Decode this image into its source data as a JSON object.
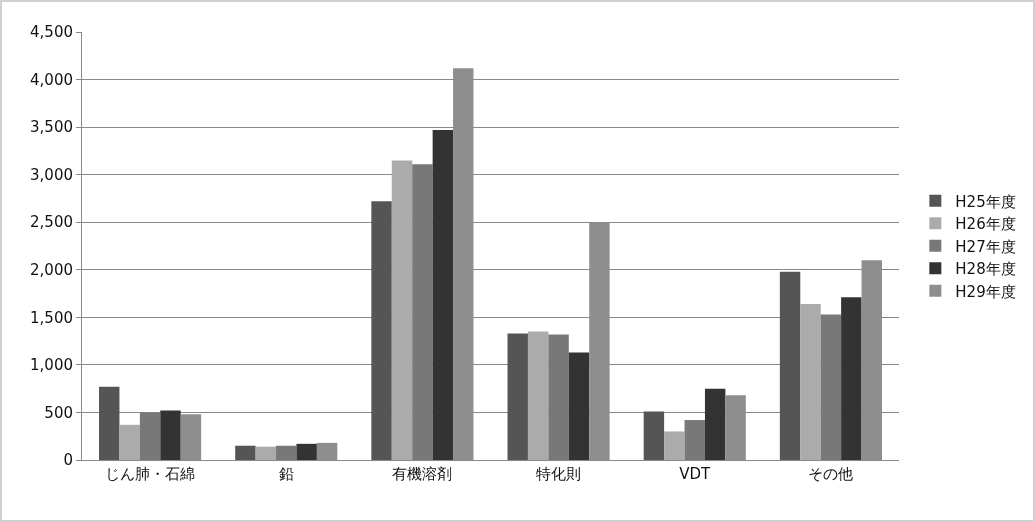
{
  "chart_data": {
    "type": "bar",
    "categories": [
      "じん肺・石綿",
      "鉛",
      "有機溶剤",
      "特化則",
      "VDT",
      "その他"
    ],
    "series": [
      {
        "name": "H25年度",
        "color": "#555555",
        "values": [
          770,
          150,
          2720,
          1330,
          510,
          1980
        ]
      },
      {
        "name": "H26年度",
        "color": "#ababab",
        "values": [
          370,
          140,
          3150,
          1350,
          300,
          1640
        ]
      },
      {
        "name": "H27年度",
        "color": "#787878",
        "values": [
          500,
          150,
          3110,
          1320,
          420,
          1530
        ]
      },
      {
        "name": "H28年度",
        "color": "#333333",
        "values": [
          520,
          170,
          3470,
          1130,
          750,
          1710
        ]
      },
      {
        "name": "H29年度",
        "color": "#8e8e8e",
        "values": [
          480,
          180,
          4120,
          2500,
          680,
          2100
        ]
      }
    ],
    "ylim": [
      0,
      4500
    ],
    "yticks": [
      {
        "value": 0,
        "label": "0"
      },
      {
        "value": 500,
        "label": "500"
      },
      {
        "value": 1000,
        "label": "1,000"
      },
      {
        "value": 1500,
        "label": "1,500"
      },
      {
        "value": 2000,
        "label": "2,000"
      },
      {
        "value": 2500,
        "label": "2,500"
      },
      {
        "value": 3000,
        "label": "3,000"
      },
      {
        "value": 3500,
        "label": "3,500"
      },
      {
        "value": 4000,
        "label": "4,000"
      },
      {
        "value": 4500,
        "label": "4,500"
      }
    ],
    "grid": "y",
    "legend": "right"
  }
}
